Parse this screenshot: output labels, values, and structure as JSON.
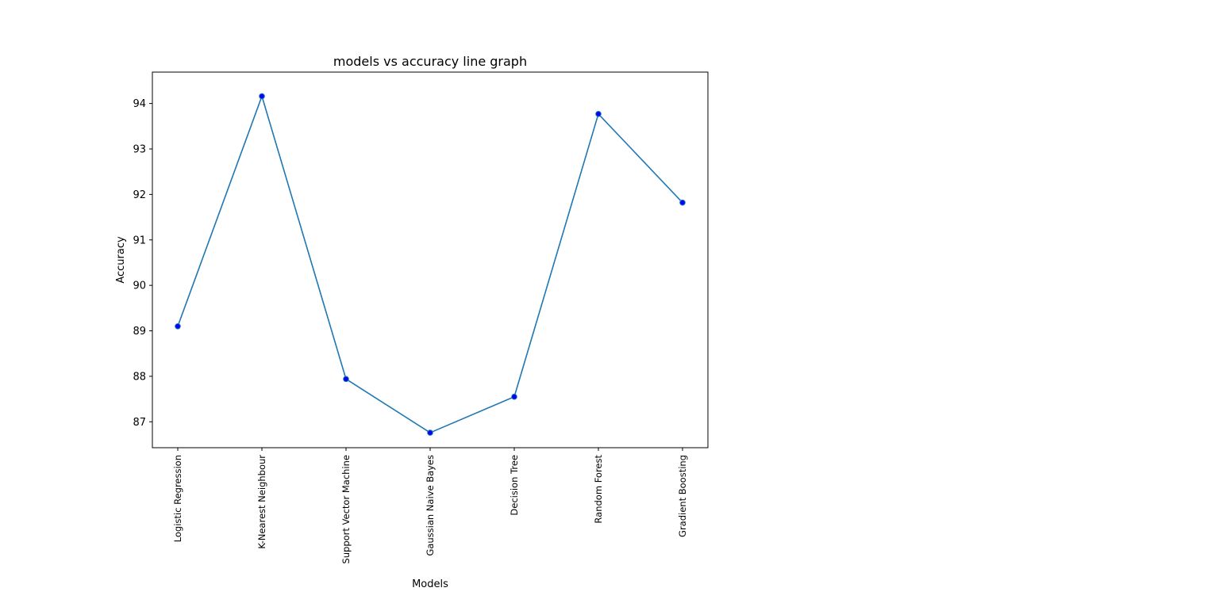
{
  "chart_data": {
    "type": "line",
    "title": "models vs accuracy line graph",
    "xlabel": "Models",
    "ylabel": "Accuracy",
    "categories": [
      "Logistic Regression",
      "K-Nearest Neighbour",
      "Support Vector Machine",
      "Gaussian Naive Bayes",
      "Decision Tree",
      "Random Forest",
      "Gradient Boosting"
    ],
    "series": [
      {
        "values": [
          89.1,
          94.16,
          87.94,
          86.76,
          87.55,
          93.77,
          91.82
        ],
        "color": "#1f77b4",
        "marker_color": "#0000ff"
      }
    ],
    "yticks": [
      87,
      88,
      89,
      90,
      91,
      92,
      93,
      94
    ],
    "ylim": [
      86.43,
      94.69
    ],
    "grid": false,
    "legend": "none"
  }
}
